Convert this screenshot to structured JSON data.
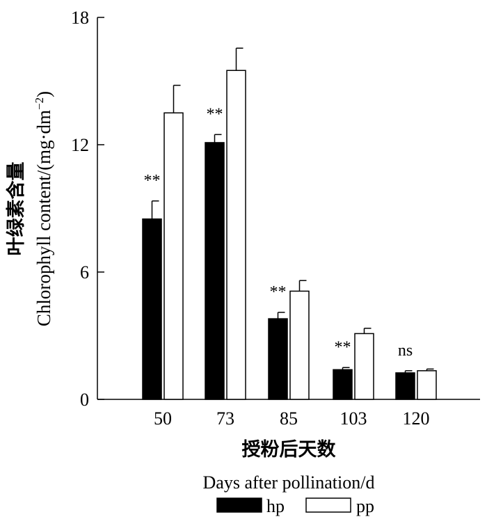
{
  "chart_data": {
    "type": "bar",
    "categories": [
      "50",
      "73",
      "85",
      "103",
      "120"
    ],
    "series": [
      {
        "name": "hp",
        "color": "#000000",
        "values": [
          8.5,
          12.1,
          3.8,
          1.4,
          1.25
        ],
        "errors": [
          0.85,
          0.38,
          0.3,
          0.1,
          0.1
        ],
        "significance": [
          "**",
          "**",
          "**",
          "**",
          "ns"
        ]
      },
      {
        "name": "pp",
        "color": "#ffffff",
        "values": [
          13.5,
          15.5,
          5.1,
          3.1,
          1.35
        ],
        "errors": [
          1.3,
          1.05,
          0.5,
          0.25,
          0.08
        ],
        "significance": [
          "",
          "",
          "",
          "",
          ""
        ]
      }
    ],
    "ylim": [
      0,
      18
    ],
    "yticks": [
      "0",
      "6",
      "12",
      "18"
    ],
    "ylabel_cn": "叶绿素含量",
    "ylabel_en": "Chlorophyll content/(mg·dm",
    "ylabel_en_sup": "−2",
    "ylabel_en_end": ")",
    "xlabel_cn": "授粉后天数",
    "xlabel_en": "Days after pollination/d",
    "legend_position": "bottom",
    "grid": false
  }
}
